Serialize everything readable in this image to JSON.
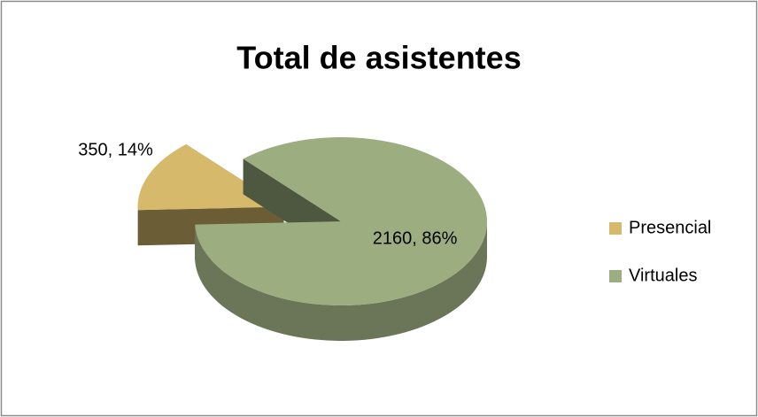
{
  "chart_data": {
    "type": "pie3d",
    "title": "Total de asistentes",
    "categories": [
      "Presencial",
      "Virtuales"
    ],
    "values": [
      350,
      2160
    ],
    "value_labels": [
      "350, 14%",
      "2160, 86%"
    ],
    "colors": [
      "#d6b96b",
      "#9cad80"
    ],
    "legend": "right"
  }
}
